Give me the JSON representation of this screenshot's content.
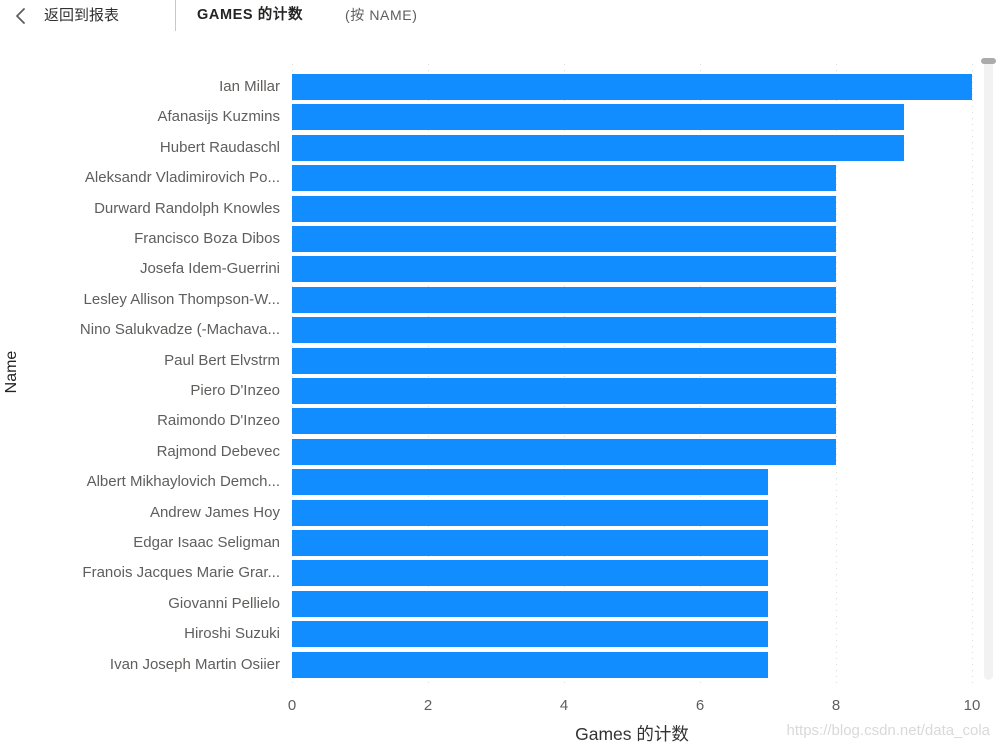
{
  "header": {
    "back_label": "返回到报表",
    "title": "GAMES 的计数",
    "subtitle": "(按 NAME)"
  },
  "icons": {
    "back_chevron": "chevron-left"
  },
  "colors": {
    "bar": "#118DFF",
    "label": "#605e5c",
    "axis_title": "#252423",
    "gridline": "#dcdcdc"
  },
  "watermark": "https://blog.csdn.net/data_cola",
  "chart_data": {
    "type": "bar",
    "orientation": "horizontal",
    "title": "GAMES 的计数 (按 NAME)",
    "xlabel": "Games 的计数",
    "ylabel": "Name",
    "xlim": [
      0,
      10
    ],
    "xticks": [
      0,
      2,
      4,
      6,
      8,
      10
    ],
    "grid": "dotted vertical gridlines",
    "legend": "none",
    "categories": [
      "Ian Millar",
      "Afanasijs Kuzmins",
      "Hubert Raudaschl",
      "Aleksandr Vladimirovich Po...",
      "Durward Randolph Knowles",
      "Francisco Boza Dibos",
      "Josefa Idem-Guerrini",
      "Lesley Allison Thompson-W...",
      "Nino Salukvadze (-Machava...",
      "Paul Bert Elvstrm",
      "Piero D'Inzeo",
      "Raimondo D'Inzeo",
      "Rajmond Debevec",
      "Albert Mikhaylovich Demch...",
      "Andrew James Hoy",
      "Edgar Isaac Seligman",
      "Franois Jacques Marie Grar...",
      "Giovanni Pellielo",
      "Hiroshi Suzuki",
      "Ivan Joseph Martin Osiier"
    ],
    "values": [
      10,
      9,
      9,
      8,
      8,
      8,
      8,
      8,
      8,
      8,
      8,
      8,
      8,
      7,
      7,
      7,
      7,
      7,
      7,
      7
    ]
  }
}
